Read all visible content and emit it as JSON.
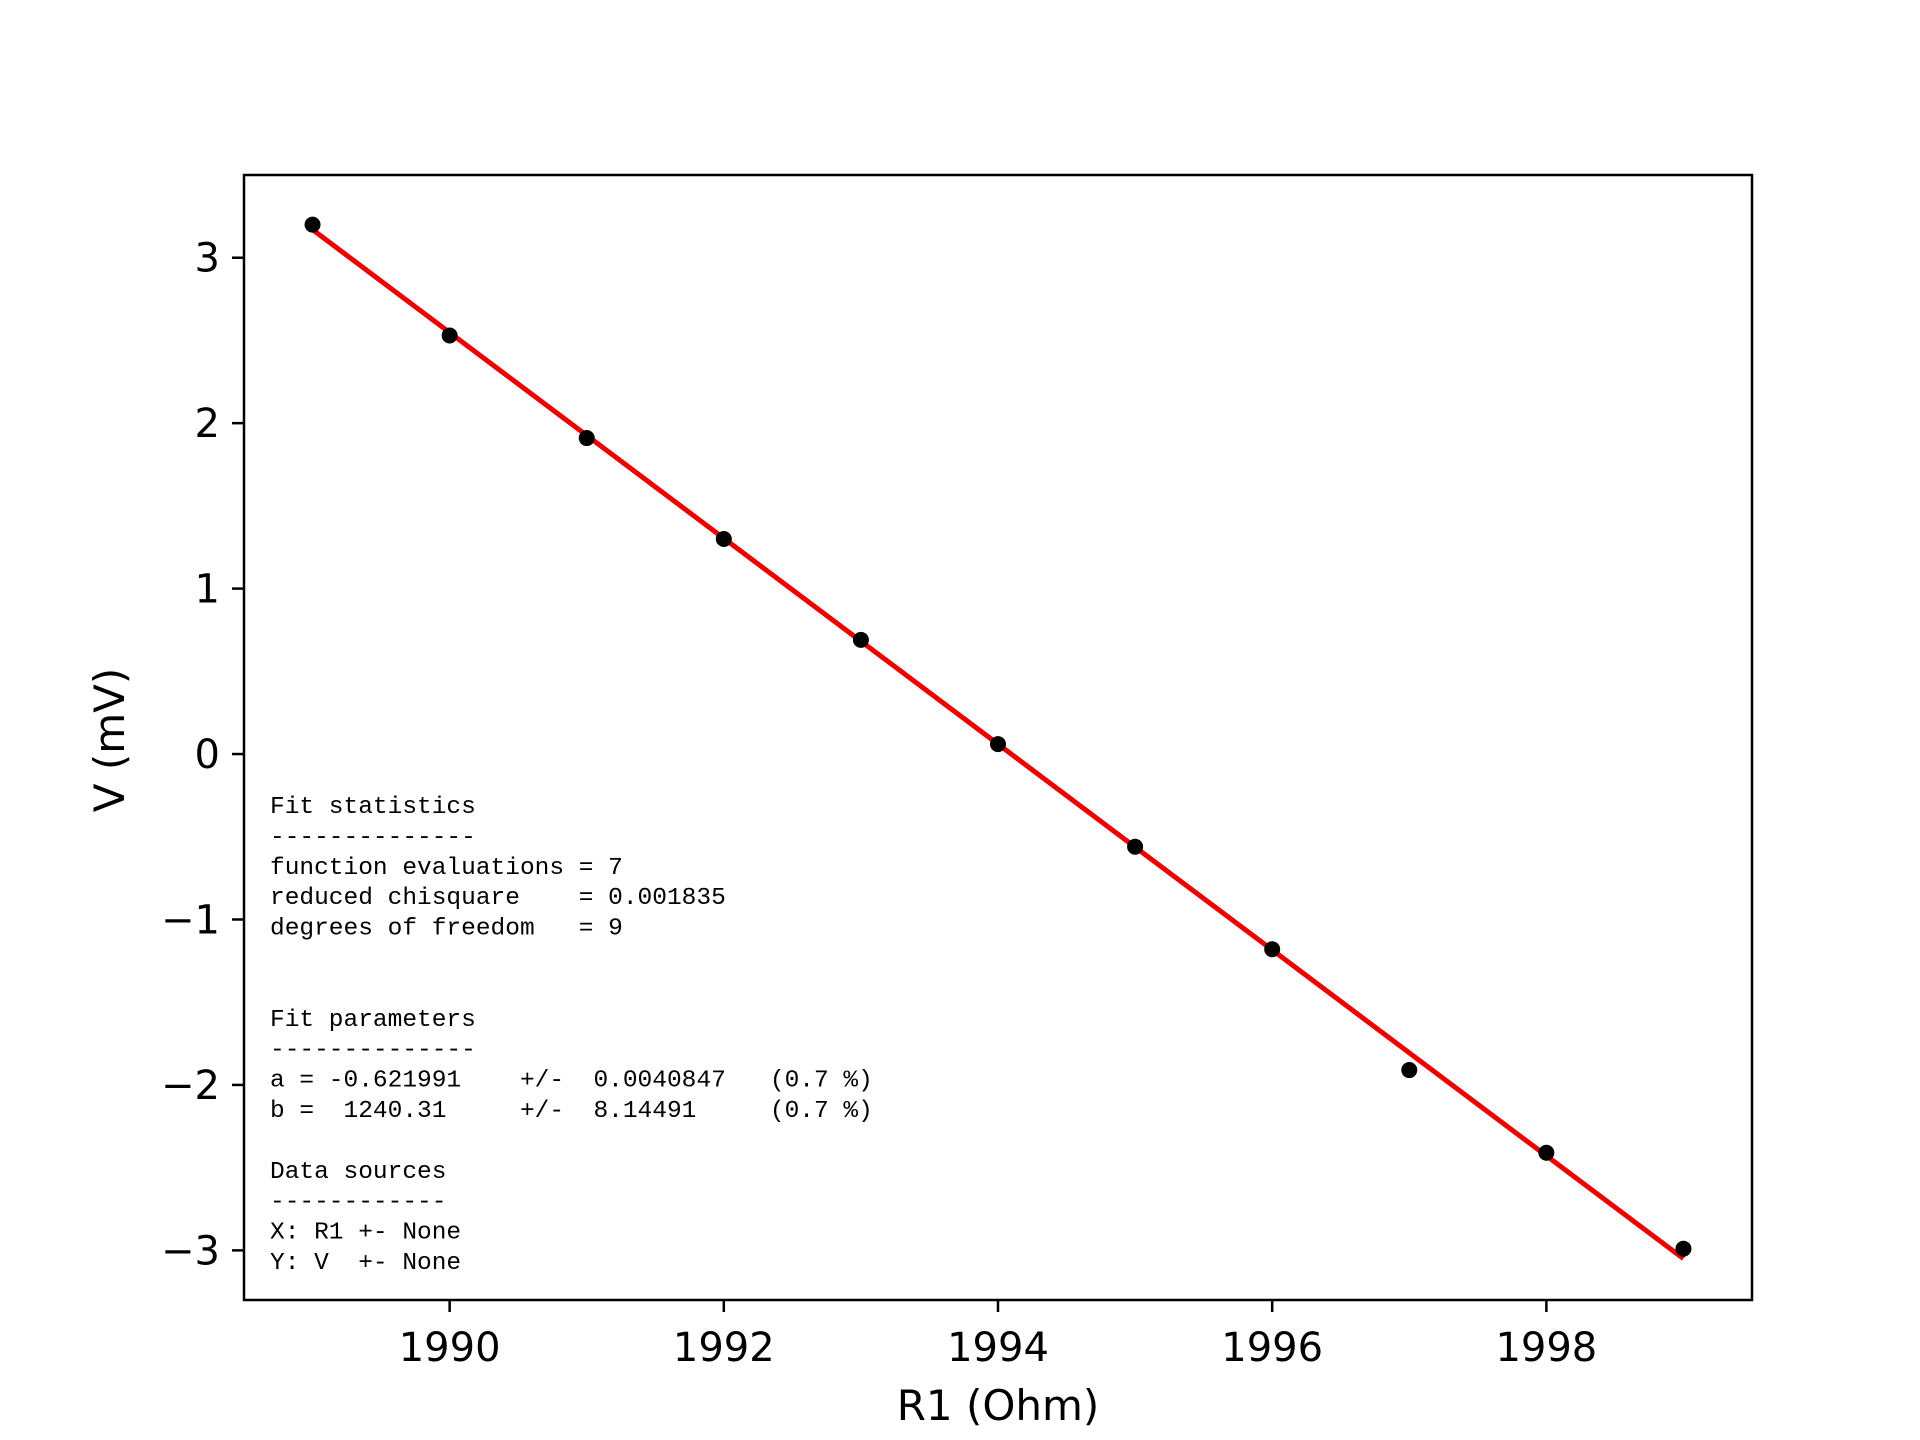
{
  "chart_data": {
    "type": "scatter",
    "xlabel": "R1 (Ohm)",
    "ylabel": "V (mV)",
    "xlim": [
      1988.5,
      1999.5
    ],
    "ylim": [
      -3.3,
      3.5
    ],
    "x_ticks": [
      1990,
      1992,
      1994,
      1996,
      1998
    ],
    "x_tick_labels": [
      "1990",
      "1992",
      "1994",
      "1996",
      "1998"
    ],
    "y_ticks": [
      3,
      2,
      1,
      0,
      -1,
      -2,
      -3
    ],
    "y_tick_labels": [
      "3",
      "2",
      "1",
      "0",
      "−1",
      "−2",
      "−3"
    ],
    "grid": false,
    "series": [
      {
        "kind": "points",
        "color": "#000000",
        "x": [
          1989,
          1990,
          1991,
          1992,
          1993,
          1994,
          1995,
          1996,
          1997,
          1998,
          1999
        ],
        "y": [
          3.2,
          2.53,
          1.91,
          1.3,
          0.69,
          0.06,
          -0.56,
          -1.18,
          -1.91,
          -2.41,
          -2.99
        ]
      },
      {
        "kind": "fit-line",
        "color": "#ee0000",
        "a": -0.621991,
        "b": 1240.31,
        "x_range": [
          1989,
          1999
        ]
      }
    ],
    "annotation_lines": [
      "Fit statistics",
      "--------------",
      "function evaluations = 7",
      "reduced chisquare    = 0.001835",
      "degrees of freedom   = 9",
      "",
      "",
      "Fit parameters",
      "--------------",
      "a = -0.621991    +/-  0.0040847   (0.7 %)",
      "b =  1240.31     +/-  8.14491     (0.7 %)",
      "",
      "Data sources",
      "------------",
      "X: R1 +- None",
      "Y: V  +- None"
    ]
  }
}
